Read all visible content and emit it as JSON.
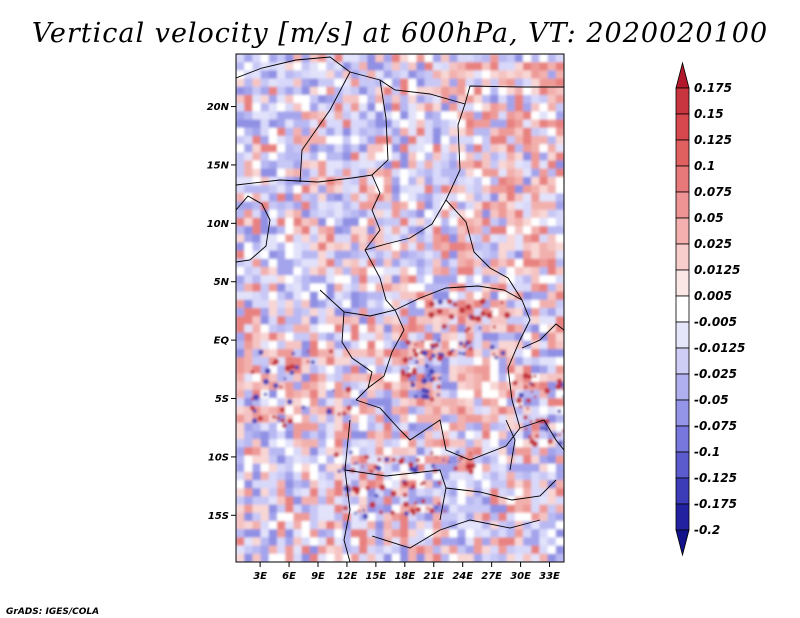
{
  "chart_data": {
    "type": "heatmap",
    "title": "Vertical velocity [m/s] at 600hPa, VT: 2020020100",
    "field": "vertical velocity",
    "units": "m/s",
    "level": "600hPa",
    "valid_time": "2020020100",
    "x_ticks": [
      "3E",
      "6E",
      "9E",
      "12E",
      "15E",
      "18E",
      "21E",
      "24E",
      "27E",
      "30E",
      "33E"
    ],
    "x_tick_values": [
      3,
      6,
      9,
      12,
      15,
      18,
      21,
      24,
      27,
      30,
      33
    ],
    "y_ticks": [
      "20N",
      "15N",
      "10N",
      "5N",
      "EQ",
      "5S",
      "10S",
      "15S"
    ],
    "y_tick_values": [
      20,
      15,
      10,
      5,
      0,
      -5,
      -10,
      -15
    ],
    "xlim": [
      0.5,
      34.5
    ],
    "ylim": [
      -19,
      24.5
    ],
    "colorbar": {
      "labels": [
        "0.175",
        "0.15",
        "0.125",
        "0.1",
        "0.075",
        "0.05",
        "0.025",
        "0.0125",
        "0.005",
        "-0.005",
        "-0.0125",
        "-0.025",
        "-0.05",
        "-0.075",
        "-0.1",
        "-0.125",
        "-0.175",
        "-0.2"
      ],
      "colors": [
        "#b2182b",
        "#c9353f",
        "#d6474e",
        "#e06060",
        "#e8797a",
        "#ef9494",
        "#f4b0ae",
        "#f8cecc",
        "#fbe7e6",
        "#ffffff",
        "#e6e6fa",
        "#cdcdf6",
        "#b0b0f0",
        "#9494e8",
        "#7777dd",
        "#5b5bcd",
        "#3c3cb8",
        "#2222a0",
        "#12128a"
      ]
    }
  },
  "credit": "GrADS: IGES/COLA",
  "colors": {
    "strong_up": "#b2182b",
    "strong_down": "#12128a",
    "neutral": "#ffffff"
  }
}
